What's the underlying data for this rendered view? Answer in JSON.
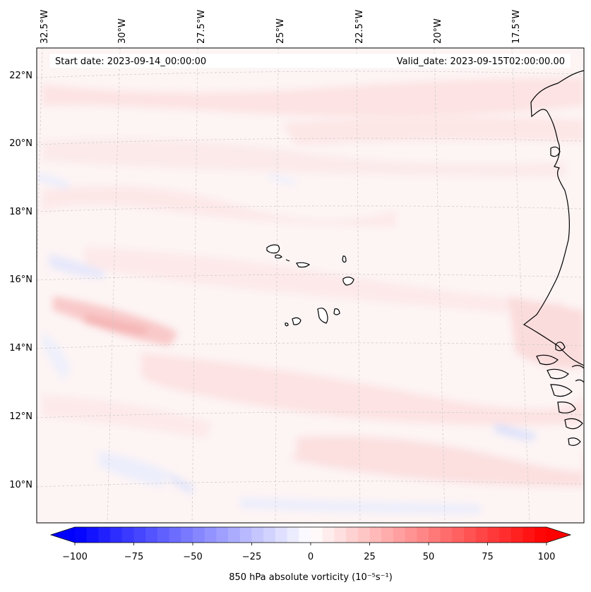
{
  "header": {
    "start_date": "Start date: 2023-09-14_00:00:00",
    "valid_date": "Valid_date: 2023-09-15T02:00:00.00"
  },
  "map": {
    "longitude_labels": [
      "32.5°W",
      "30°W",
      "27.5°W",
      "25°W",
      "22.5°W",
      "20°W",
      "17.5°W"
    ],
    "latitude_labels": [
      "22°N",
      "20°N",
      "18°N",
      "16°N",
      "14°N",
      "12°N",
      "10°N"
    ],
    "field": "850 hPa absolute vorticity"
  },
  "colorbar": {
    "ticks": [
      "−100",
      "−75",
      "−50",
      "−25",
      "0",
      "25",
      "50",
      "75",
      "100"
    ],
    "tick_values": [
      -100,
      -75,
      -50,
      -25,
      0,
      25,
      50,
      75,
      100
    ],
    "vmin": -100,
    "vmax": 100,
    "step": 5,
    "label": "850 hPa absolute vorticity (10⁻⁵s⁻¹)",
    "colormap": "bwr",
    "low_color": "#0000ff",
    "mid_color": "#ffffff",
    "high_color": "#ff0000"
  }
}
